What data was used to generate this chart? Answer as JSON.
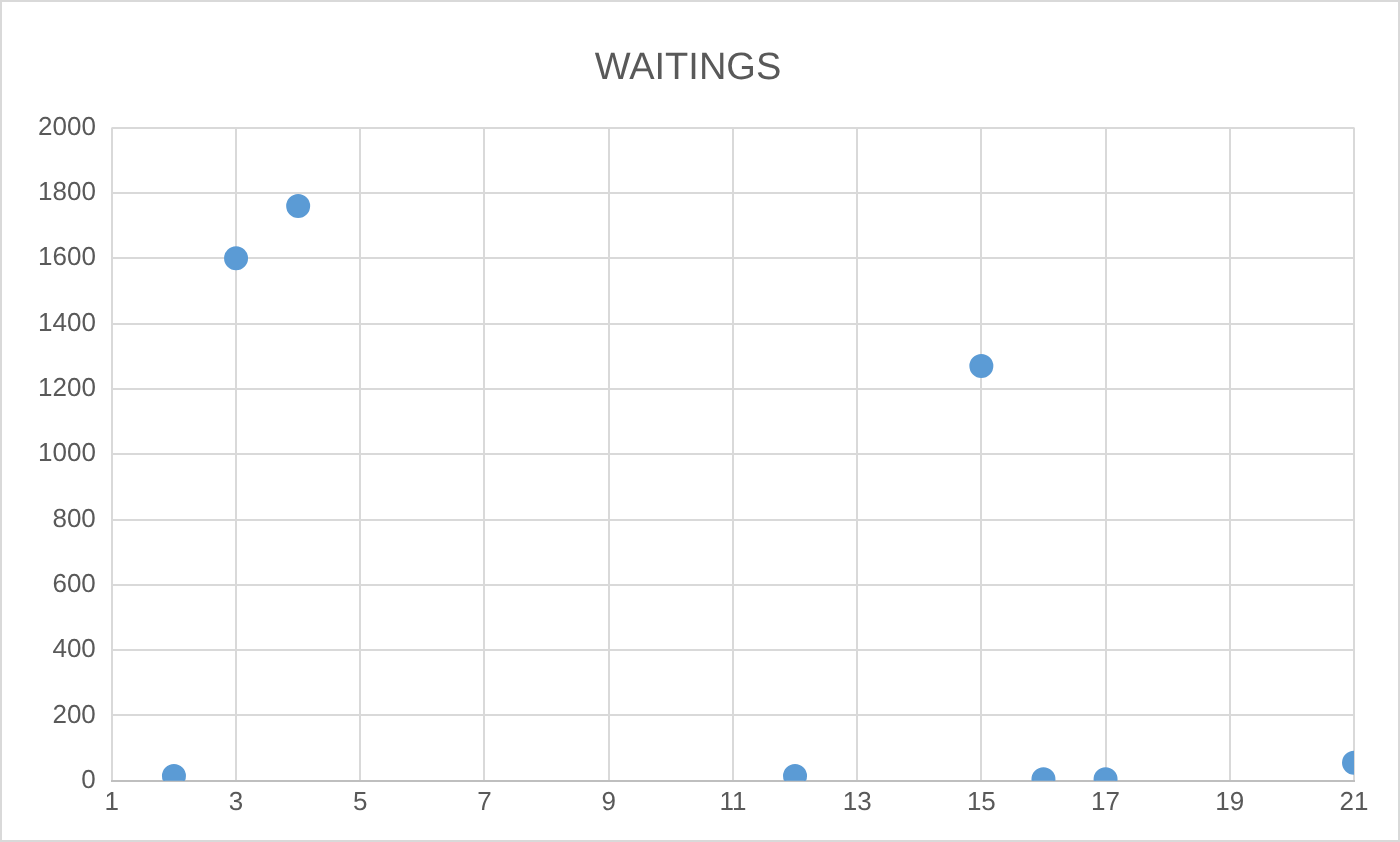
{
  "chart_data": {
    "type": "scatter",
    "title": "WAITINGS",
    "x": [
      2,
      3,
      4,
      12,
      15,
      16,
      17,
      21
    ],
    "series": [
      {
        "color": "#5b9bd5",
        "values": [
          15,
          1600,
          1760,
          15,
          1270,
          5,
          5,
          55
        ]
      }
    ],
    "xlim": [
      1,
      21
    ],
    "xticks": [
      1,
      3,
      5,
      7,
      9,
      11,
      13,
      15,
      17,
      19,
      21
    ],
    "ylim": [
      0,
      2000
    ],
    "yticks": [
      0,
      200,
      400,
      600,
      800,
      1000,
      1200,
      1400,
      1600,
      1800,
      2000
    ],
    "grid": true,
    "legend": false,
    "marker": "circle"
  }
}
